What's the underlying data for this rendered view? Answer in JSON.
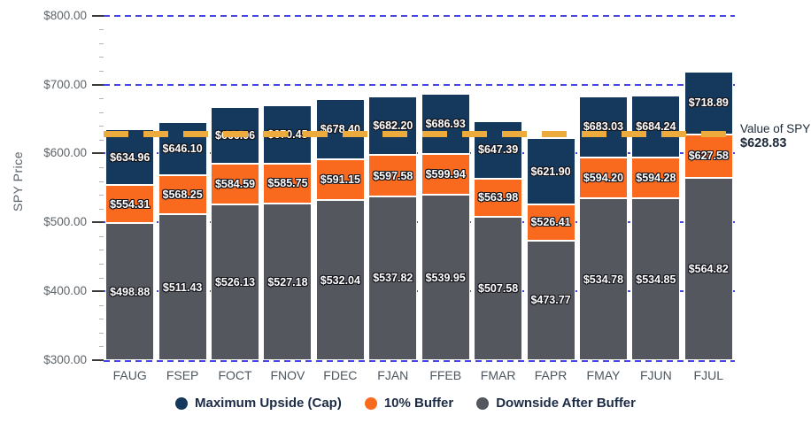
{
  "chart_data": {
    "type": "bar",
    "stacked": true,
    "ylabel": "SPY Price",
    "ylim": [
      300,
      810
    ],
    "yticks": [
      300,
      400,
      500,
      600,
      700,
      800
    ],
    "ytick_labels": [
      "$300.00",
      "$400.00",
      "$500.00",
      "$600.00",
      "$700.00",
      "$800.00"
    ],
    "minor_tick_interval": 20,
    "grid_style": "dashed",
    "grid_color": "#4444ee",
    "legend_position": "bottom",
    "categories": [
      "FAUG",
      "FSEP",
      "FOCT",
      "FNOV",
      "FDEC",
      "FJAN",
      "FFEB",
      "FMAR",
      "FAPR",
      "FMAY",
      "FJUN",
      "FJUL"
    ],
    "series": [
      {
        "name": "Maximum Upside (Cap)",
        "color": "#15395c",
        "values": [
          634.96,
          646.1,
          666.96,
          670.45,
          678.4,
          682.2,
          686.93,
          647.39,
          621.9,
          683.03,
          684.24,
          718.89
        ],
        "labels": [
          "$634.96",
          "$646.10",
          "$666.96",
          "$670.45",
          "$678.40",
          "$682.20",
          "$686.93",
          "$647.39",
          "$621.90",
          "$683.03",
          "$684.24",
          "$718.89"
        ]
      },
      {
        "name": "10% Buffer",
        "color": "#f96a1e",
        "values": [
          554.31,
          568.25,
          584.59,
          585.75,
          591.15,
          597.58,
          599.94,
          563.98,
          526.41,
          594.2,
          594.28,
          627.58
        ],
        "labels": [
          "$554.31",
          "$568.25",
          "$584.59",
          "$585.75",
          "$591.15",
          "$597.58",
          "$599.94",
          "$563.98",
          "$526.41",
          "$594.20",
          "$594.28",
          "$627.58"
        ]
      },
      {
        "name": "Downside After Buffer",
        "color": "#55575f",
        "values": [
          498.88,
          511.43,
          526.13,
          527.18,
          532.04,
          537.82,
          539.95,
          507.58,
          473.77,
          534.78,
          534.85,
          564.82
        ],
        "labels": [
          "$498.88",
          "$511.43",
          "$526.13",
          "$527.18",
          "$532.04",
          "$537.82",
          "$539.95",
          "$507.58",
          "$473.77",
          "$534.78",
          "$534.85",
          "$564.82"
        ]
      }
    ],
    "reference_line": {
      "label": "Value of SPY",
      "value": 628.83,
      "value_label": "$628.83",
      "color": "#edaa3d"
    }
  }
}
